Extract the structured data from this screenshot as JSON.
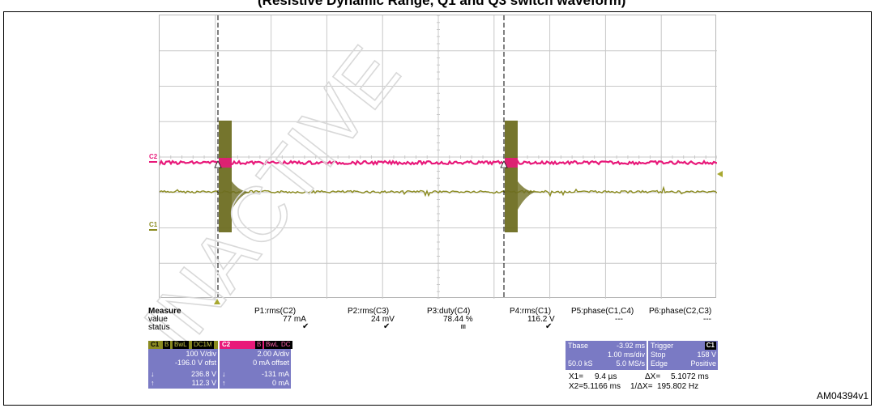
{
  "page": {
    "caption": "(Resistive Dynamic Range, Q1 and Q3 switch waveform)",
    "figure_id": "AM04394v1",
    "watermark": "INACTIVE"
  },
  "scope": {
    "colors": {
      "grid": "#c8c8c8",
      "c1": "#8b8b20",
      "c2": "#e8197a",
      "c1_fill": "#6e6e22",
      "cursor": "#000000",
      "panel": "#7a7ac4"
    },
    "channels": [
      {
        "id": "C2",
        "color": "#e8197a"
      },
      {
        "id": "C1",
        "color": "#8b8b20"
      }
    ]
  },
  "measure": {
    "title": "Measure",
    "rows": [
      "value",
      "status"
    ],
    "columns": [
      {
        "name": "P1:rms(C2)",
        "value": "77 mA",
        "status": "✔"
      },
      {
        "name": "P2:rms(C3)",
        "value": "24 mV",
        "status": "✔"
      },
      {
        "name": "P3:duty(C4)",
        "value": "78.44 %",
        "status": "⩎"
      },
      {
        "name": "P4:rms(C1)",
        "value": "116.2 V",
        "status": "✔"
      },
      {
        "name": "P5:phase(C1,C4)",
        "value": "---",
        "status": ""
      },
      {
        "name": "P6:phase(C2,C3)",
        "value": "---",
        "status": ""
      }
    ]
  },
  "c1_panel": {
    "label": "C1",
    "tags": [
      "B",
      "BwL",
      "DC1M"
    ],
    "vdiv": "100 V/div",
    "offset": "-196.0 V ofst",
    "down_value": "236.8 V",
    "up_value": "112.3 V",
    "down_arrow": "↓",
    "up_arrow": "↑"
  },
  "c2_panel": {
    "label": "C2",
    "tags": [
      "B",
      "BwL",
      "DC"
    ],
    "adiv": "2.00 A/div",
    "offset": "0 mA offset",
    "down_value": "-131 mA",
    "up_value": "0 mA",
    "down_arrow": "↓",
    "up_arrow": "↑"
  },
  "timebase": {
    "label": "Tbase",
    "delay": "-3.92 ms",
    "tdiv": "1.00 ms/div",
    "samples": "50.0 kS",
    "rate": "5.0 MS/s"
  },
  "trigger": {
    "label": "Trigger",
    "channel": "C1",
    "mode": "Stop",
    "level": "158 V",
    "type": "Edge",
    "slope": "Positive"
  },
  "cursors": {
    "x1_label": "X1=",
    "x1": "9.4 µs",
    "dx_label": "ΔX=",
    "dx": "5.1072 ms",
    "x2_label": "X2=",
    "x2": "5.1166 ms",
    "inv_label": "1/ΔX=",
    "inv": "195.802 Hz"
  }
}
